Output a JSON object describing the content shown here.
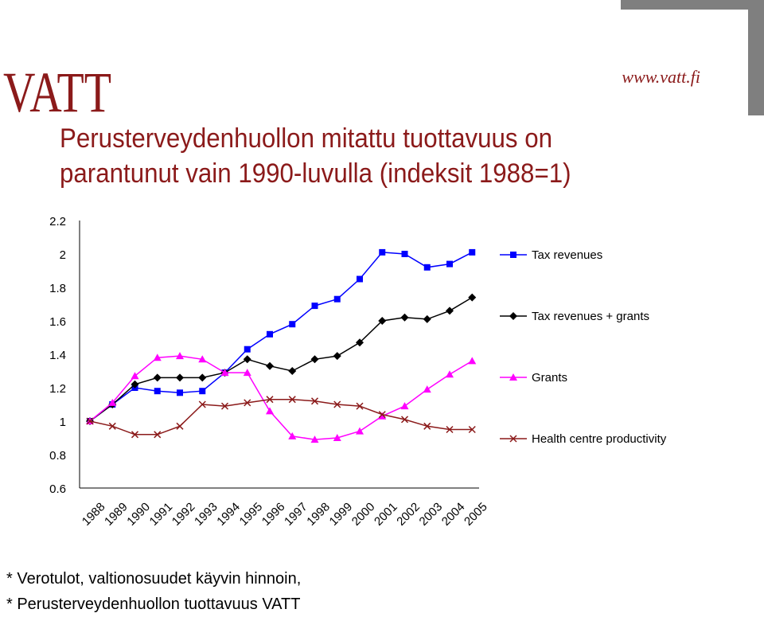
{
  "header": {
    "logo_text": "VATT",
    "website": "www.vatt.fi"
  },
  "slide": {
    "title_line1": "Perusterveydenhuollon mitattu tuottavuus on",
    "title_line2": "parantunut vain 1990-luvulla (indeksit 1988=1)",
    "footnote1": "* Verotulot, valtionosuudet käyvin hinnoin,",
    "footnote2": "* Perusterveydenhuollon tuottavuus VATT"
  },
  "colors": {
    "brand": "#8b1a1a",
    "corner": "#7f7f7f",
    "tax_revenues": "#0000ff",
    "tax_revenues_grants": "#000000",
    "grants": "#ff00ff",
    "productivity": "#8b1a1a"
  },
  "chart_data": {
    "type": "line",
    "title": "",
    "xlabel": "",
    "ylabel": "",
    "categories": [
      "1988",
      "1989",
      "1990",
      "1991",
      "1992",
      "1993",
      "1994",
      "1995",
      "1996",
      "1997",
      "1998",
      "1999",
      "2000",
      "2001",
      "2002",
      "2003",
      "2004",
      "2005"
    ],
    "yticks": [
      "0.6",
      "0.8",
      "1",
      "1.2",
      "1.4",
      "1.6",
      "1.8",
      "2",
      "2.2"
    ],
    "ylim": [
      0.6,
      2.2
    ],
    "grid": false,
    "legend_position": "right",
    "series": [
      {
        "name": "Tax revenues",
        "marker": "square",
        "color": "#0000ff",
        "values": [
          1.0,
          1.1,
          1.2,
          1.18,
          1.17,
          1.18,
          1.29,
          1.43,
          1.52,
          1.58,
          1.69,
          1.73,
          1.85,
          2.01,
          2.0,
          1.92,
          1.94,
          2.01
        ]
      },
      {
        "name": "Tax revenues + grants",
        "marker": "diamond",
        "color": "#000000",
        "values": [
          1.0,
          1.1,
          1.22,
          1.26,
          1.26,
          1.26,
          1.29,
          1.37,
          1.33,
          1.3,
          1.37,
          1.39,
          1.47,
          1.6,
          1.62,
          1.61,
          1.66,
          1.74
        ]
      },
      {
        "name": "Grants",
        "marker": "triangle",
        "color": "#ff00ff",
        "values": [
          1.0,
          1.11,
          1.27,
          1.38,
          1.39,
          1.37,
          1.29,
          1.29,
          1.06,
          0.91,
          0.89,
          0.9,
          0.94,
          1.03,
          1.09,
          1.19,
          1.28,
          1.36
        ]
      },
      {
        "name": "Health centre productivity",
        "marker": "x",
        "color": "#8b1a1a",
        "values": [
          1.0,
          0.97,
          0.92,
          0.92,
          0.97,
          1.1,
          1.09,
          1.11,
          1.13,
          1.13,
          1.12,
          1.1,
          1.09,
          1.04,
          1.01,
          0.97,
          0.95,
          0.95
        ]
      }
    ]
  }
}
